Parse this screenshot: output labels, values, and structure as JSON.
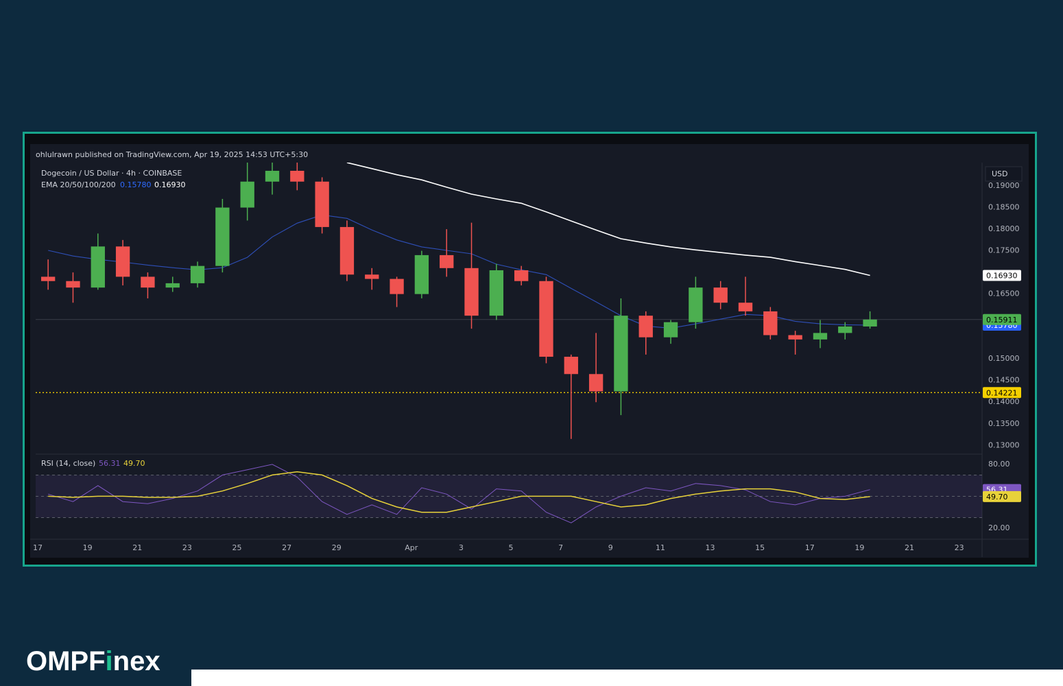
{
  "header": {
    "published": "ohlulrawn published on TradingView.com, Apr 19, 2025 14:53 UTC+5:30"
  },
  "brand": {
    "part1": "OMPF",
    "part2": "i",
    "part3": "nex"
  },
  "chart_data": [
    {
      "type": "candlestick",
      "title": "Dogecoin / US Dollar · 4h · COINBASE",
      "currency": "USD",
      "indicator": "EMA 20/50/100/200",
      "up_color": "#4caf50",
      "down_color": "#ef5350",
      "categories": [
        "17",
        null,
        "19",
        null,
        "21",
        null,
        "23",
        null,
        "25",
        null,
        "27",
        null,
        "29",
        null,
        null,
        "Apr",
        null,
        "3",
        null,
        "5",
        null,
        "7",
        null,
        "9",
        null,
        "11",
        null,
        "13",
        null,
        "15",
        null,
        "17",
        null,
        "19",
        null,
        "21",
        null,
        "23"
      ],
      "open": [
        0.169,
        0.168,
        0.1665,
        0.176,
        0.169,
        0.1665,
        0.1675,
        0.1715,
        0.185,
        0.191,
        0.1935,
        0.191,
        0.1805,
        0.1695,
        0.1685,
        0.165,
        0.174,
        0.171,
        0.16,
        0.1705,
        0.168,
        0.1505,
        0.1465,
        0.1425,
        0.16,
        0.155,
        0.1585,
        0.1665,
        0.163,
        0.161,
        0.1555,
        0.1545,
        0.156,
        0.1575,
        null,
        null,
        null,
        null
      ],
      "high": [
        0.173,
        0.17,
        0.179,
        0.1775,
        0.17,
        0.169,
        0.1725,
        0.187,
        0.196,
        0.199,
        0.196,
        0.192,
        0.182,
        0.171,
        0.169,
        0.175,
        0.18,
        0.1815,
        0.172,
        0.1715,
        0.169,
        0.151,
        0.156,
        0.164,
        0.161,
        0.159,
        0.169,
        0.168,
        0.169,
        0.162,
        0.1565,
        0.159,
        0.1585,
        0.161,
        null,
        null,
        null,
        null
      ],
      "low": [
        0.166,
        0.163,
        0.166,
        0.167,
        0.164,
        0.1655,
        0.1665,
        0.17,
        0.182,
        0.188,
        0.189,
        0.179,
        0.168,
        0.166,
        0.162,
        0.164,
        0.169,
        0.157,
        0.159,
        0.167,
        0.149,
        0.1315,
        0.14,
        0.137,
        0.151,
        0.1535,
        0.157,
        0.1615,
        0.16,
        0.1545,
        0.151,
        0.1525,
        0.1545,
        0.157,
        null,
        null,
        null,
        null
      ],
      "close": [
        0.168,
        0.1665,
        0.176,
        0.169,
        0.1665,
        0.1675,
        0.1715,
        0.185,
        0.191,
        0.1935,
        0.191,
        0.1805,
        0.1695,
        0.1685,
        0.165,
        0.174,
        0.171,
        0.16,
        0.1705,
        0.168,
        0.1505,
        0.1465,
        0.1425,
        0.16,
        0.155,
        0.1585,
        0.1665,
        0.163,
        0.161,
        0.1555,
        0.1545,
        0.156,
        0.1575,
        0.15911,
        null,
        null,
        null,
        null
      ],
      "series": [
        {
          "name": "EMA 50",
          "color": "#2e4fb8",
          "tag": {
            "value": 0.1578,
            "label": "0.15780"
          },
          "tag_color": "#2962ff",
          "values": [
            0.1751,
            0.1738,
            0.173,
            0.1724,
            0.1717,
            0.1711,
            0.1706,
            0.1711,
            0.1735,
            0.1782,
            0.1814,
            0.1833,
            0.1825,
            0.1798,
            0.1775,
            0.1759,
            0.1751,
            0.1743,
            0.1719,
            0.1706,
            0.1695,
            0.1663,
            0.1632,
            0.16,
            0.1576,
            0.1571,
            0.1581,
            0.1592,
            0.1603,
            0.16,
            0.1587,
            0.1581,
            0.1579,
            0.1578,
            null,
            null,
            null,
            null
          ]
        },
        {
          "name": "EMA 200",
          "color": "#ffffff",
          "tag": {
            "value": 0.1693,
            "label": "0.16930"
          },
          "tag_color": "#ffffff",
          "values": [
            null,
            null,
            null,
            null,
            null,
            null,
            null,
            null,
            null,
            null,
            null,
            null,
            0.1954,
            0.194,
            0.1926,
            0.1914,
            0.1897,
            0.1881,
            0.187,
            0.186,
            0.184,
            0.1819,
            0.1798,
            0.1778,
            0.1768,
            0.1759,
            0.1752,
            0.1746,
            0.174,
            0.1735,
            0.1725,
            0.1716,
            0.1707,
            0.1693,
            null,
            null,
            null,
            null
          ]
        }
      ],
      "hlines": [
        {
          "value": 0.14221,
          "color": "#f5d000"
        }
      ],
      "ylim": [
        0.1283,
        0.1954
      ],
      "yticks": [
        {
          "value": 0.19,
          "label": "0.19000"
        },
        {
          "value": 0.185,
          "label": "0.18500"
        },
        {
          "value": 0.18,
          "label": "0.18000"
        },
        {
          "value": 0.175,
          "label": "0.17500"
        },
        {
          "value": 0.165,
          "label": "0.16500"
        },
        {
          "value": 0.15,
          "label": "0.15000"
        },
        {
          "value": 0.145,
          "label": "0.14500"
        },
        {
          "value": 0.14,
          "label": "0.14000"
        },
        {
          "value": 0.135,
          "label": "0.13500"
        },
        {
          "value": 0.13,
          "label": "0.13000"
        }
      ],
      "grid": false
    },
    {
      "type": "line",
      "title": "RSI (14, close)",
      "series": [
        {
          "name": "RSI",
          "color": "#7e57c2",
          "tag": 56.31,
          "values": [
            52,
            45,
            60,
            45,
            43,
            48,
            55,
            70,
            75,
            80,
            68,
            45,
            33,
            42,
            33,
            58,
            52,
            38,
            57,
            55,
            35,
            25,
            40,
            50,
            58,
            55,
            62,
            60,
            56,
            45,
            42,
            48,
            50,
            56.31
          ]
        },
        {
          "name": "RSI MA",
          "color": "#e8d23a",
          "tag": {
            "value": 49.7,
            "label": "49.70"
          },
          "values": [
            50,
            49,
            50,
            50,
            49,
            49,
            50,
            55,
            62,
            70,
            73,
            70,
            60,
            48,
            40,
            35,
            35,
            40,
            45,
            50,
            50,
            50,
            45,
            40,
            42,
            48,
            52,
            55,
            57,
            57,
            54,
            48,
            47,
            49.7
          ]
        }
      ],
      "levels": [
        70,
        50,
        30
      ],
      "ylim": [
        10.3,
        87.7
      ],
      "yticks": [
        {
          "value": 80,
          "label": "80.00"
        },
        {
          "value": 20,
          "label": "20.00"
        }
      ]
    }
  ]
}
